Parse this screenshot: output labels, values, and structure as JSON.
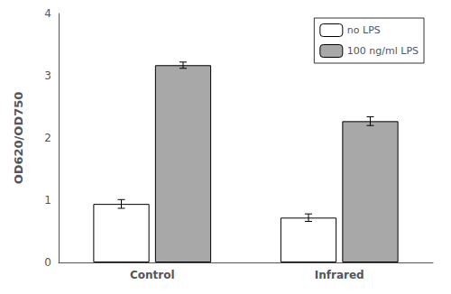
{
  "chart_data": {
    "type": "bar",
    "ylabel": "OD620/OD750",
    "categories": [
      "Control",
      "Infrared"
    ],
    "series": [
      {
        "name": "no LPS",
        "color": "#ffffff",
        "values": [
          0.94,
          0.72
        ],
        "errors": [
          0.07,
          0.06
        ]
      },
      {
        "name": "100 ng/ml LPS",
        "color": "#a8a8a8",
        "values": [
          3.17,
          2.27
        ],
        "errors": [
          0.05,
          0.07
        ]
      }
    ],
    "ylim": [
      0,
      4
    ],
    "yticks": [
      0,
      1,
      2,
      3,
      4
    ],
    "grid": false,
    "legend": "upper right"
  }
}
